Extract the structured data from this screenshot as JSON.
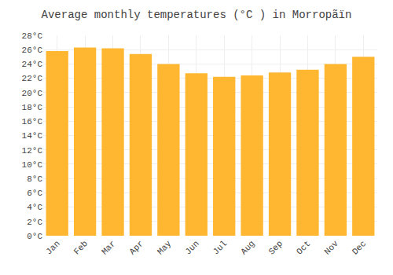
{
  "chart_data": {
    "type": "bar",
    "title": "Average monthly temperatures (°C ) in Morropãïn",
    "categories": [
      "Jan",
      "Feb",
      "Mar",
      "Apr",
      "May",
      "Jun",
      "Jul",
      "Aug",
      "Sep",
      "Oct",
      "Nov",
      "Dec"
    ],
    "values": [
      25.8,
      26.3,
      26.2,
      25.4,
      24.0,
      22.7,
      22.2,
      22.4,
      22.8,
      23.2,
      24.0,
      25.0
    ],
    "color": "#FFB732",
    "ylim": [
      0,
      28
    ],
    "yticks": [
      {
        "value": 0,
        "label": "0°C"
      },
      {
        "value": 2,
        "label": "2°C"
      },
      {
        "value": 4,
        "label": "4°C"
      },
      {
        "value": 6,
        "label": "6°C"
      },
      {
        "value": 8,
        "label": "8°C"
      },
      {
        "value": 10,
        "label": "10°C"
      },
      {
        "value": 12,
        "label": "12°C"
      },
      {
        "value": 14,
        "label": "14°C"
      },
      {
        "value": 16,
        "label": "16°C"
      },
      {
        "value": 18,
        "label": "18°C"
      },
      {
        "value": 20,
        "label": "20°C"
      },
      {
        "value": 22,
        "label": "22°C"
      },
      {
        "value": 24,
        "label": "24°C"
      },
      {
        "value": 26,
        "label": "26°C"
      },
      {
        "value": 28,
        "label": "28°C"
      }
    ],
    "grid": true
  }
}
